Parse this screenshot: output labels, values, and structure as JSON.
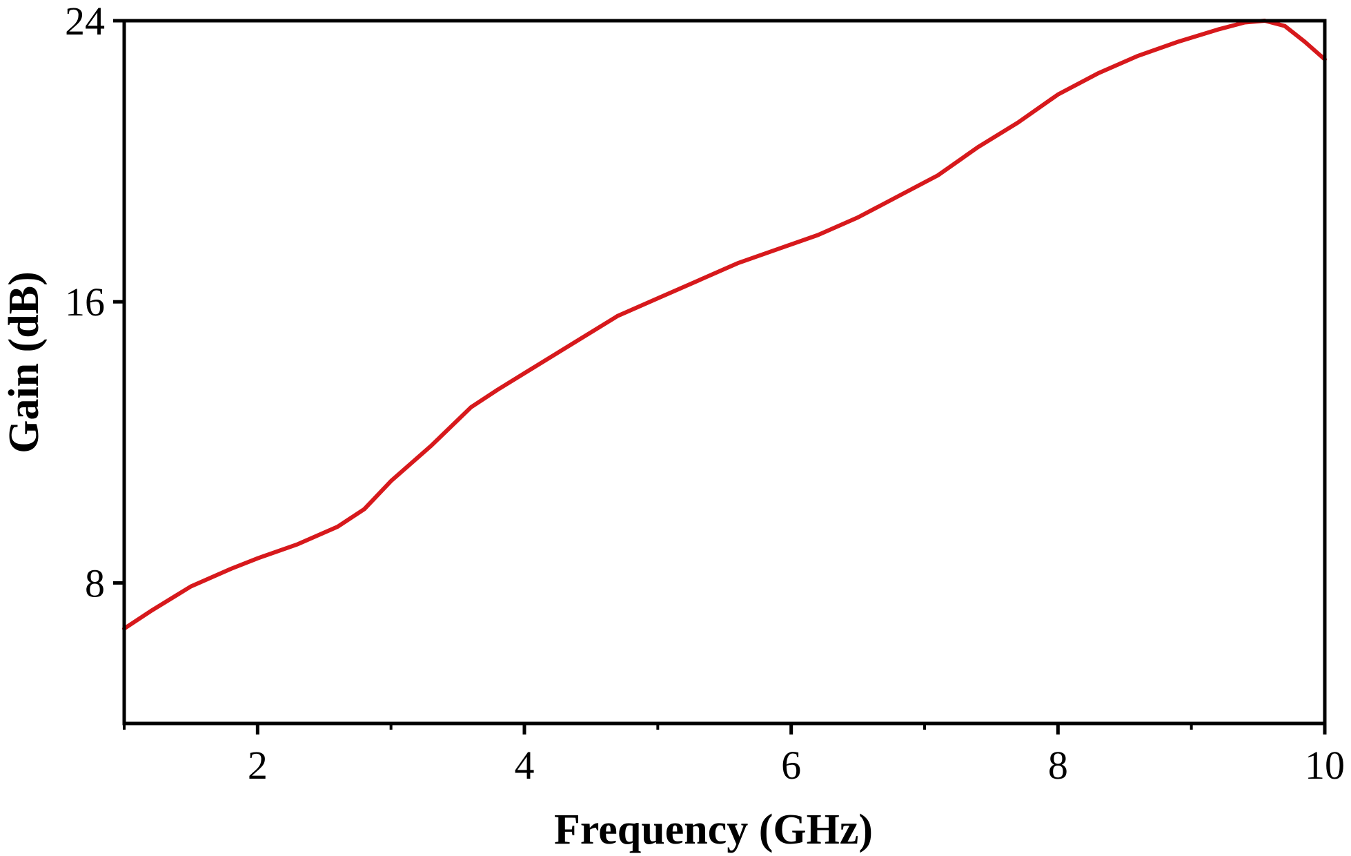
{
  "chart_data": {
    "type": "line",
    "title": "",
    "xlabel": "Frequency (GHz)",
    "ylabel": "Gain (dB)",
    "xlim": [
      1,
      10
    ],
    "ylim": [
      4,
      24
    ],
    "xticks": [
      2,
      4,
      6,
      8,
      10
    ],
    "yticks": [
      8,
      16,
      24
    ],
    "x_minor_ticks": [
      1,
      3,
      5,
      7,
      9
    ],
    "grid": false,
    "legend": "none",
    "series": [
      {
        "color": "#d7191c",
        "x": [
          1.0,
          1.2,
          1.5,
          1.8,
          2.0,
          2.3,
          2.6,
          2.8,
          3.0,
          3.3,
          3.6,
          3.8,
          4.1,
          4.4,
          4.7,
          5.0,
          5.3,
          5.6,
          5.9,
          6.2,
          6.5,
          6.8,
          7.1,
          7.4,
          7.7,
          8.0,
          8.3,
          8.6,
          8.9,
          9.2,
          9.4,
          9.55,
          9.7,
          9.85,
          10.0
        ],
        "y": [
          6.7,
          7.2,
          7.9,
          8.4,
          8.7,
          9.1,
          9.6,
          10.1,
          10.9,
          11.9,
          13.0,
          13.5,
          14.2,
          14.9,
          15.6,
          16.1,
          16.6,
          17.1,
          17.5,
          17.9,
          18.4,
          19.0,
          19.6,
          20.4,
          21.1,
          21.9,
          22.5,
          23.0,
          23.4,
          23.75,
          23.95,
          24.0,
          23.85,
          23.4,
          22.9
        ]
      }
    ]
  }
}
